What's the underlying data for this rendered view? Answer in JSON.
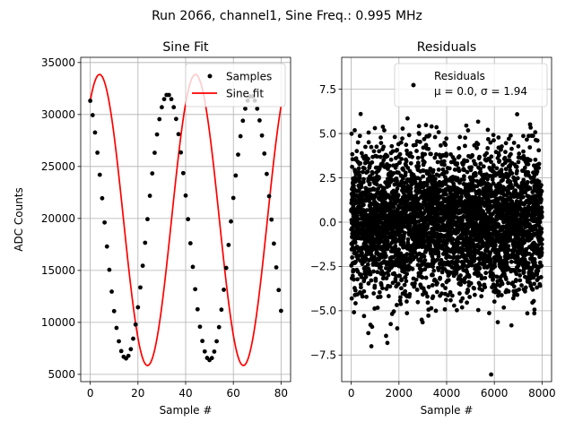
{
  "figure": {
    "suptitle": "Run 2066, channel1, Sine Freq.: 0.995 MHz"
  },
  "chart_data": [
    {
      "type": "line",
      "title": "Sine Fit",
      "xlabel": "Sample #",
      "ylabel": "ADC Counts",
      "xlim": [
        -4,
        84
      ],
      "ylim": [
        4300,
        35500
      ],
      "xticks": [
        0,
        20,
        40,
        60,
        80
      ],
      "yticks": [
        5000,
        10000,
        15000,
        20000,
        25000,
        30000,
        35000
      ],
      "grid": true,
      "legend_location": "top-right",
      "fit_model": {
        "offset": 19850,
        "amplitude": 14000,
        "period_samples": 40.2,
        "phase_deg": 55
      },
      "series": [
        {
          "name": "Samples",
          "style": "points",
          "color": "#000000",
          "x": [
            0,
            1,
            2,
            3,
            4,
            5,
            6,
            7,
            8,
            9,
            10,
            11,
            12,
            13,
            14,
            15,
            16,
            17,
            18,
            19,
            20,
            21,
            22,
            23,
            24,
            25,
            26,
            27,
            28,
            29,
            30,
            31,
            32,
            33,
            34,
            35,
            36,
            37,
            38,
            39,
            40,
            41,
            42,
            43,
            44,
            45,
            46,
            47,
            48,
            49,
            50,
            51,
            52,
            53,
            54,
            55,
            56,
            57,
            58,
            59,
            60,
            61,
            62,
            63,
            64,
            65,
            66,
            67,
            68,
            69,
            70,
            71,
            72,
            73,
            74,
            75,
            76,
            77,
            78,
            79,
            80
          ],
          "y": [
            31320,
            29940,
            28270,
            26330,
            24200,
            21940,
            19610,
            17300,
            15060,
            12960,
            11080,
            9470,
            8180,
            7240,
            6690,
            6530,
            6780,
            7420,
            8430,
            9790,
            11450,
            13360,
            15450,
            17660,
            19930,
            22180,
            24330,
            26320,
            28080,
            29550,
            30700,
            31480,
            31880,
            31880,
            31480,
            30700,
            29570,
            28110,
            26350,
            24360,
            22200,
            19930,
            17610,
            15340,
            13190,
            11260,
            9580,
            8210,
            7200,
            6580,
            6370,
            6570,
            7190,
            8180,
            9540,
            11220,
            13140,
            15240,
            17450,
            19710,
            21970,
            24130,
            26140,
            27910,
            29400,
            30560,
            31340,
            31740,
            31740,
            31340,
            30560,
            29430,
            27980,
            26240,
            24280,
            22140,
            19890,
            17580,
            15290,
            13110,
            11110
          ]
        },
        {
          "name": "Sine fit",
          "style": "line",
          "color": "#ff0000"
        }
      ]
    },
    {
      "type": "scatter",
      "title": "Residuals",
      "xlabel": "Sample #",
      "ylabel": "",
      "xlim": [
        -400,
        8400
      ],
      "ylim": [
        -9.0,
        9.3
      ],
      "xticks": [
        0,
        2000,
        4000,
        6000,
        8000
      ],
      "yticks": [
        -7.5,
        -5.0,
        -2.5,
        0.0,
        2.5,
        5.0,
        7.5
      ],
      "grid": true,
      "legend_location": "top-right",
      "residual_stats": {
        "n_samples": 8000,
        "mean": 0.0,
        "sigma": 1.94,
        "x_step": 1
      },
      "series": [
        {
          "name": "Residuals",
          "legend_label_line1": "Residuals",
          "legend_label_line2": "μ = 0.0, σ = 1.94",
          "style": "points",
          "color": "#000000"
        }
      ]
    }
  ]
}
